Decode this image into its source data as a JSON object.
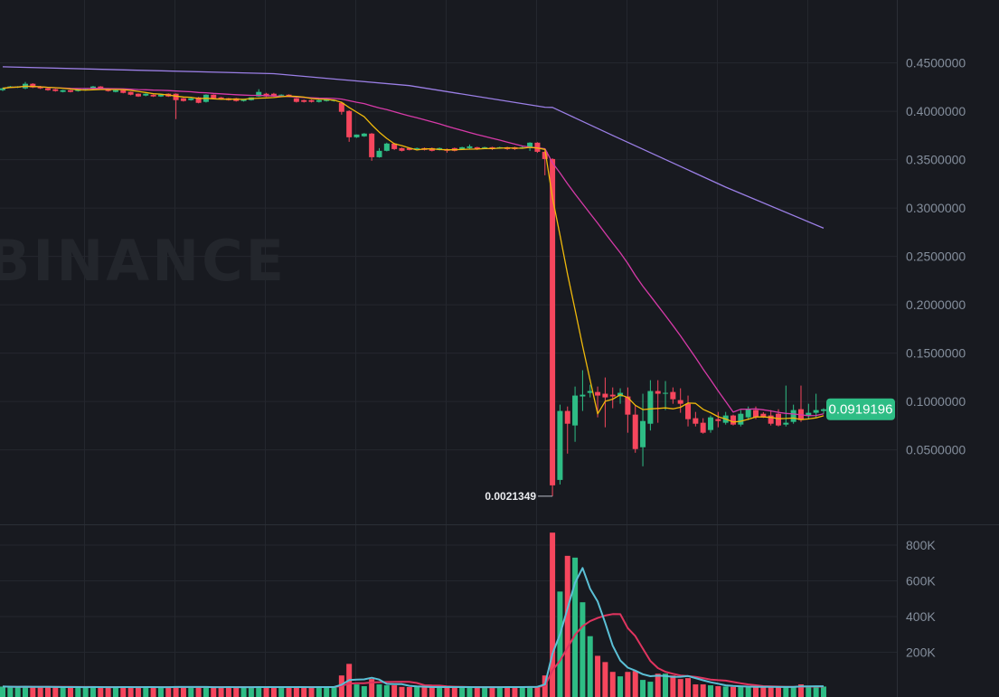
{
  "watermark": "BINANCE",
  "colors": {
    "background": "#181a20",
    "grid": "#24272e",
    "up": "#2ebd85",
    "down": "#f6465d",
    "ma7": "#f0b90b",
    "ma25": "#d63aa8",
    "ma99": "#9b7fe6",
    "vol_ma5": "#5bc0d6",
    "vol_ma10": "#e0345f",
    "price_tag": "#2ebd85"
  },
  "chart_data": [
    {
      "type": "candlestick",
      "title": "",
      "price_axis": {
        "ticks": [
          0.45,
          0.4,
          0.35,
          0.3,
          0.25,
          0.2,
          0.15,
          0.1,
          0.05
        ],
        "tick_labels": [
          "0.4500000",
          "0.4000000",
          "0.3500000",
          "0.3000000",
          "0.2500000",
          "0.2000000",
          "0.1500000",
          "0.1000000",
          "0.0500000"
        ],
        "ylim": [
          -0.027,
          0.515
        ]
      },
      "grid": true,
      "last_price": "0.0919196",
      "low_marker": {
        "label": "0.0021349",
        "candle_index": 73
      },
      "ohlc": [
        [
          0.4218,
          0.4246,
          0.4209,
          0.4237
        ],
        [
          0.4246,
          0.4262,
          0.424,
          0.4256
        ],
        [
          0.4246,
          0.426,
          0.424,
          0.4256
        ],
        [
          0.4237,
          0.4303,
          0.4228,
          0.4284
        ],
        [
          0.4284,
          0.429,
          0.424,
          0.4246
        ],
        [
          0.4256,
          0.4262,
          0.423,
          0.4237
        ],
        [
          0.4237,
          0.424,
          0.4212,
          0.4218
        ],
        [
          0.4228,
          0.4232,
          0.4203,
          0.4209
        ],
        [
          0.42,
          0.4222,
          0.4195,
          0.4218
        ],
        [
          0.4218,
          0.4222,
          0.4195,
          0.42
        ],
        [
          0.4209,
          0.4232,
          0.4203,
          0.4228
        ],
        [
          0.4218,
          0.4232,
          0.4212,
          0.4228
        ],
        [
          0.4228,
          0.4262,
          0.4222,
          0.4256
        ],
        [
          0.4256,
          0.426,
          0.4232,
          0.4237
        ],
        [
          0.4237,
          0.424,
          0.4203,
          0.4209
        ],
        [
          0.42,
          0.4222,
          0.4195,
          0.4218
        ],
        [
          0.4218,
          0.4222,
          0.4185,
          0.419
        ],
        [
          0.42,
          0.4203,
          0.4165,
          0.4171
        ],
        [
          0.4181,
          0.4185,
          0.4148,
          0.4153
        ],
        [
          0.4162,
          0.4185,
          0.4155,
          0.4181
        ],
        [
          0.4171,
          0.4175,
          0.4148,
          0.4153
        ],
        [
          0.4153,
          0.4175,
          0.4148,
          0.4171
        ],
        [
          0.4181,
          0.4185,
          0.4148,
          0.4153
        ],
        [
          0.4181,
          0.4185,
          0.3919,
          0.4115
        ],
        [
          0.4134,
          0.4138,
          0.41,
          0.4106
        ],
        [
          0.4115,
          0.4138,
          0.411,
          0.4134
        ],
        [
          0.4143,
          0.4148,
          0.4082,
          0.4087
        ],
        [
          0.4097,
          0.4175,
          0.409,
          0.4171
        ],
        [
          0.4171,
          0.4175,
          0.4128,
          0.4134
        ],
        [
          0.4143,
          0.4148,
          0.412,
          0.4125
        ],
        [
          0.4134,
          0.4138,
          0.411,
          0.4115
        ],
        [
          0.4134,
          0.4138,
          0.41,
          0.4106
        ],
        [
          0.4106,
          0.4128,
          0.41,
          0.4125
        ],
        [
          0.4115,
          0.4143,
          0.411,
          0.4143
        ],
        [
          0.4153,
          0.4228,
          0.4148,
          0.42
        ],
        [
          0.4181,
          0.419,
          0.4148,
          0.4153
        ],
        [
          0.4181,
          0.419,
          0.4148,
          0.4153
        ],
        [
          0.4162,
          0.4175,
          0.4155,
          0.4171
        ],
        [
          0.4171,
          0.4175,
          0.4148,
          0.4153
        ],
        [
          0.4134,
          0.4138,
          0.409,
          0.4097
        ],
        [
          0.4115,
          0.412,
          0.409,
          0.4097
        ],
        [
          0.4115,
          0.412,
          0.409,
          0.4097
        ],
        [
          0.4097,
          0.412,
          0.409,
          0.4115
        ],
        [
          0.4106,
          0.4128,
          0.41,
          0.4125
        ],
        [
          0.4106,
          0.412,
          0.41,
          0.4115
        ],
        [
          0.4087,
          0.41,
          0.3965,
          0.3994
        ],
        [
          0.4003,
          0.401,
          0.3684,
          0.3731
        ],
        [
          0.3731,
          0.376,
          0.3725,
          0.3759
        ],
        [
          0.3741,
          0.3775,
          0.3735,
          0.3769
        ],
        [
          0.3769,
          0.3775,
          0.3488,
          0.3525
        ],
        [
          0.3525,
          0.3619,
          0.352,
          0.3591
        ],
        [
          0.3591,
          0.3675,
          0.3585,
          0.3666
        ],
        [
          0.3666,
          0.3672,
          0.36,
          0.3609
        ],
        [
          0.3619,
          0.3625,
          0.3585,
          0.3591
        ],
        [
          0.3619,
          0.3625,
          0.3595,
          0.36
        ],
        [
          0.3609,
          0.3625,
          0.36,
          0.3619
        ],
        [
          0.3619,
          0.3625,
          0.3595,
          0.36
        ],
        [
          0.3619,
          0.3625,
          0.3585,
          0.3591
        ],
        [
          0.36,
          0.3625,
          0.3595,
          0.3619
        ],
        [
          0.3609,
          0.3615,
          0.3572,
          0.3591
        ],
        [
          0.3619,
          0.3625,
          0.3585,
          0.3591
        ],
        [
          0.3609,
          0.3633,
          0.36,
          0.3628
        ],
        [
          0.3619,
          0.3656,
          0.3612,
          0.3637
        ],
        [
          0.3628,
          0.3633,
          0.36,
          0.3609
        ],
        [
          0.3619,
          0.3633,
          0.3612,
          0.3628
        ],
        [
          0.3628,
          0.3633,
          0.36,
          0.3609
        ],
        [
          0.3619,
          0.3633,
          0.3612,
          0.3628
        ],
        [
          0.3628,
          0.3633,
          0.36,
          0.3609
        ],
        [
          0.3628,
          0.3633,
          0.36,
          0.3609
        ],
        [
          0.3619,
          0.364,
          0.3612,
          0.3628
        ],
        [
          0.3619,
          0.368,
          0.359,
          0.3675
        ],
        [
          0.3675,
          0.368,
          0.357,
          0.3581
        ],
        [
          0.3581,
          0.359,
          0.3338,
          0.3506
        ],
        [
          0.3506,
          0.3515,
          0.0021349,
          0.0133
        ],
        [
          0.0189,
          0.0967,
          0.0142,
          0.0902
        ],
        [
          0.0902,
          0.0948,
          0.0461,
          0.077
        ],
        [
          0.0752,
          0.1154,
          0.0583,
          0.1061
        ],
        [
          0.1052,
          0.1323,
          0.0902,
          0.107
        ],
        [
          0.1089,
          0.1173,
          0.1042,
          0.1108
        ],
        [
          0.1098,
          0.1154,
          0.0836,
          0.1061
        ],
        [
          0.108,
          0.1248,
          0.0733,
          0.1042
        ],
        [
          0.107,
          0.1145,
          0.093,
          0.1052
        ],
        [
          0.1052,
          0.1136,
          0.0976,
          0.1089
        ],
        [
          0.1052,
          0.1145,
          0.0677,
          0.0864
        ],
        [
          0.0864,
          0.0958,
          0.047,
          0.0508
        ],
        [
          0.0527,
          0.108,
          0.033,
          0.0798
        ],
        [
          0.077,
          0.122,
          0.07,
          0.1108
        ],
        [
          0.1108,
          0.122,
          0.078,
          0.108
        ],
        [
          0.1089,
          0.1211,
          0.0911,
          0.1089
        ],
        [
          0.1098,
          0.1145,
          0.0976,
          0.1023
        ],
        [
          0.1014,
          0.1136,
          0.0883,
          0.0976
        ],
        [
          0.0976,
          0.1061,
          0.0742,
          0.0817
        ],
        [
          0.0827,
          0.0892,
          0.0742,
          0.077
        ],
        [
          0.078,
          0.0827,
          0.0667,
          0.0677
        ],
        [
          0.0705,
          0.0855,
          0.0677,
          0.0836
        ],
        [
          0.0817,
          0.0892,
          0.0733,
          0.0798
        ],
        [
          0.078,
          0.0892,
          0.0761,
          0.0855
        ],
        [
          0.0855,
          0.0864,
          0.0752,
          0.0761
        ],
        [
          0.0761,
          0.0911,
          0.0742,
          0.0873
        ],
        [
          0.0836,
          0.0948,
          0.0808,
          0.092
        ],
        [
          0.0911,
          0.0948,
          0.0817,
          0.0836
        ],
        [
          0.0873,
          0.089,
          0.083,
          0.0836
        ],
        [
          0.0855,
          0.0911,
          0.0752,
          0.077
        ],
        [
          0.0873,
          0.092,
          0.0742,
          0.0752
        ],
        [
          0.0761,
          0.1164,
          0.0742,
          0.078
        ],
        [
          0.0789,
          0.0967,
          0.077,
          0.0911
        ],
        [
          0.092,
          0.1164,
          0.0789,
          0.0808
        ],
        [
          0.0855,
          0.0976,
          0.0817,
          0.0883
        ],
        [
          0.0883,
          0.108,
          0.0836,
          0.0911
        ],
        [
          0.0902,
          0.093,
          0.0873,
          0.0919196
        ]
      ],
      "ma_lines": {
        "ma7": {
          "period": 7
        },
        "ma25": {
          "period": 25
        },
        "ma99": {
          "points": [
            [
              0,
              0.4459
            ],
            [
              36,
              0.4388
            ],
            [
              54,
              0.4265
            ],
            [
              72,
              0.4042
            ],
            [
              73,
              0.404
            ],
            [
              81,
              0.375
            ],
            [
              96,
              0.3216
            ],
            [
              109,
              0.2791
            ]
          ]
        }
      }
    },
    {
      "type": "bar",
      "title": "",
      "volume_axis": {
        "ticks": [
          800000,
          600000,
          400000,
          200000
        ],
        "tick_labels": [
          "800K",
          "600K",
          "400K",
          "200K"
        ],
        "ylim": [
          0,
          920000
        ]
      },
      "grid": true,
      "volume_k": [
        8,
        6,
        5,
        9,
        6,
        5,
        5,
        4,
        6,
        5,
        5,
        4,
        6,
        5,
        4,
        5,
        5,
        6,
        4,
        5,
        5,
        4,
        5,
        9,
        5,
        4,
        6,
        5,
        4,
        5,
        5,
        4,
        5,
        5,
        6,
        5,
        5,
        4,
        5,
        6,
        5,
        4,
        5,
        5,
        6,
        70,
        135,
        20,
        10,
        50,
        20,
        15,
        15,
        6,
        5,
        5,
        4,
        5,
        6,
        5,
        5,
        4,
        5,
        5,
        4,
        5,
        5,
        6,
        5,
        5,
        8,
        10,
        70,
        870,
        540,
        740,
        730,
        480,
        290,
        180,
        145,
        90,
        65,
        90,
        95,
        45,
        35,
        80,
        80,
        70,
        50,
        55,
        20,
        20,
        15,
        10,
        8,
        6,
        8,
        5,
        6,
        5,
        6,
        5,
        6,
        7,
        20,
        8,
        6,
        8
      ],
      "ma_lines": {
        "ma5": {
          "period": 5
        },
        "ma10": {
          "period": 10
        }
      }
    }
  ]
}
